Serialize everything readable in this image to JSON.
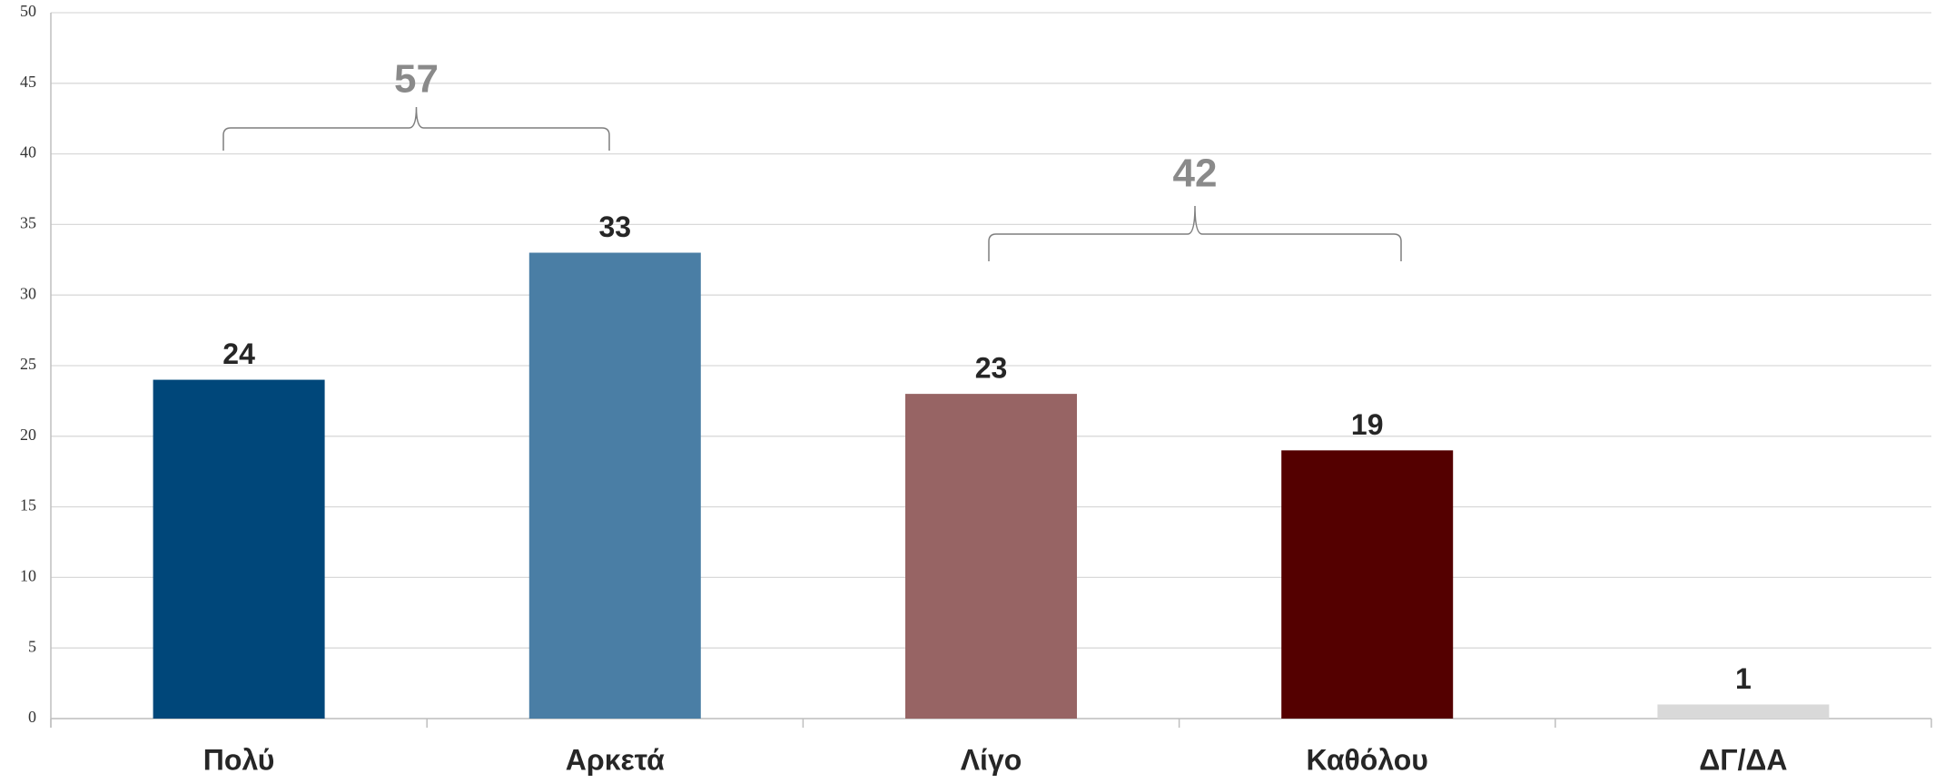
{
  "chart_data": {
    "type": "bar",
    "categories": [
      "Πολύ",
      "Αρκετά",
      "Λίγο",
      "Καθόλου",
      "ΔΓ/ΔΑ"
    ],
    "values": [
      24,
      33,
      23,
      19,
      1
    ],
    "colors": [
      "#00477a",
      "#4a7ea5",
      "#976464",
      "#540000",
      "#d9d9d9"
    ],
    "ylim": [
      0,
      50
    ],
    "yticks": [
      0,
      5,
      10,
      15,
      20,
      25,
      30,
      35,
      40,
      45,
      50
    ],
    "grid": true,
    "annotations": [
      "57",
      "42"
    ]
  }
}
